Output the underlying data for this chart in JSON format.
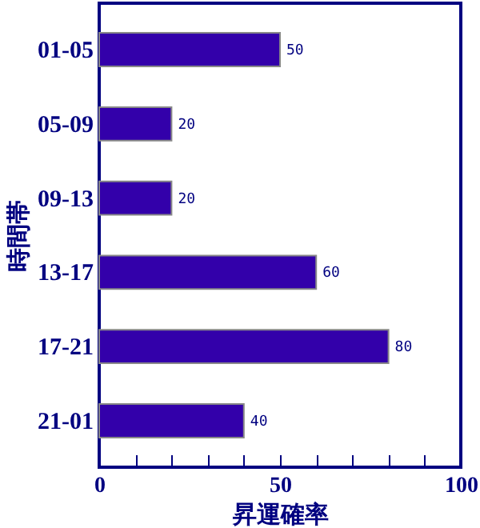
{
  "chart_data": {
    "type": "bar",
    "orientation": "horizontal",
    "xlabel": "昇運確率",
    "ylabel": "時間帯",
    "categories": [
      "01-05",
      "05-09",
      "09-13",
      "13-17",
      "17-21",
      "21-01"
    ],
    "values": [
      50,
      20,
      20,
      60,
      80,
      40
    ],
    "color": "#3300aa",
    "data_labels": true,
    "xlim": [
      0,
      100
    ],
    "xticks": [
      0,
      {
        "value": 10,
        "label": null
      },
      {
        "value": 20,
        "label": null
      },
      {
        "value": 30,
        "label": null
      },
      {
        "value": 40,
        "label": null
      },
      50,
      {
        "value": 60,
        "label": null
      },
      {
        "value": 70,
        "label": null
      },
      {
        "value": 80,
        "label": null
      },
      {
        "value": 90,
        "label": null
      },
      100
    ],
    "grid": false
  }
}
